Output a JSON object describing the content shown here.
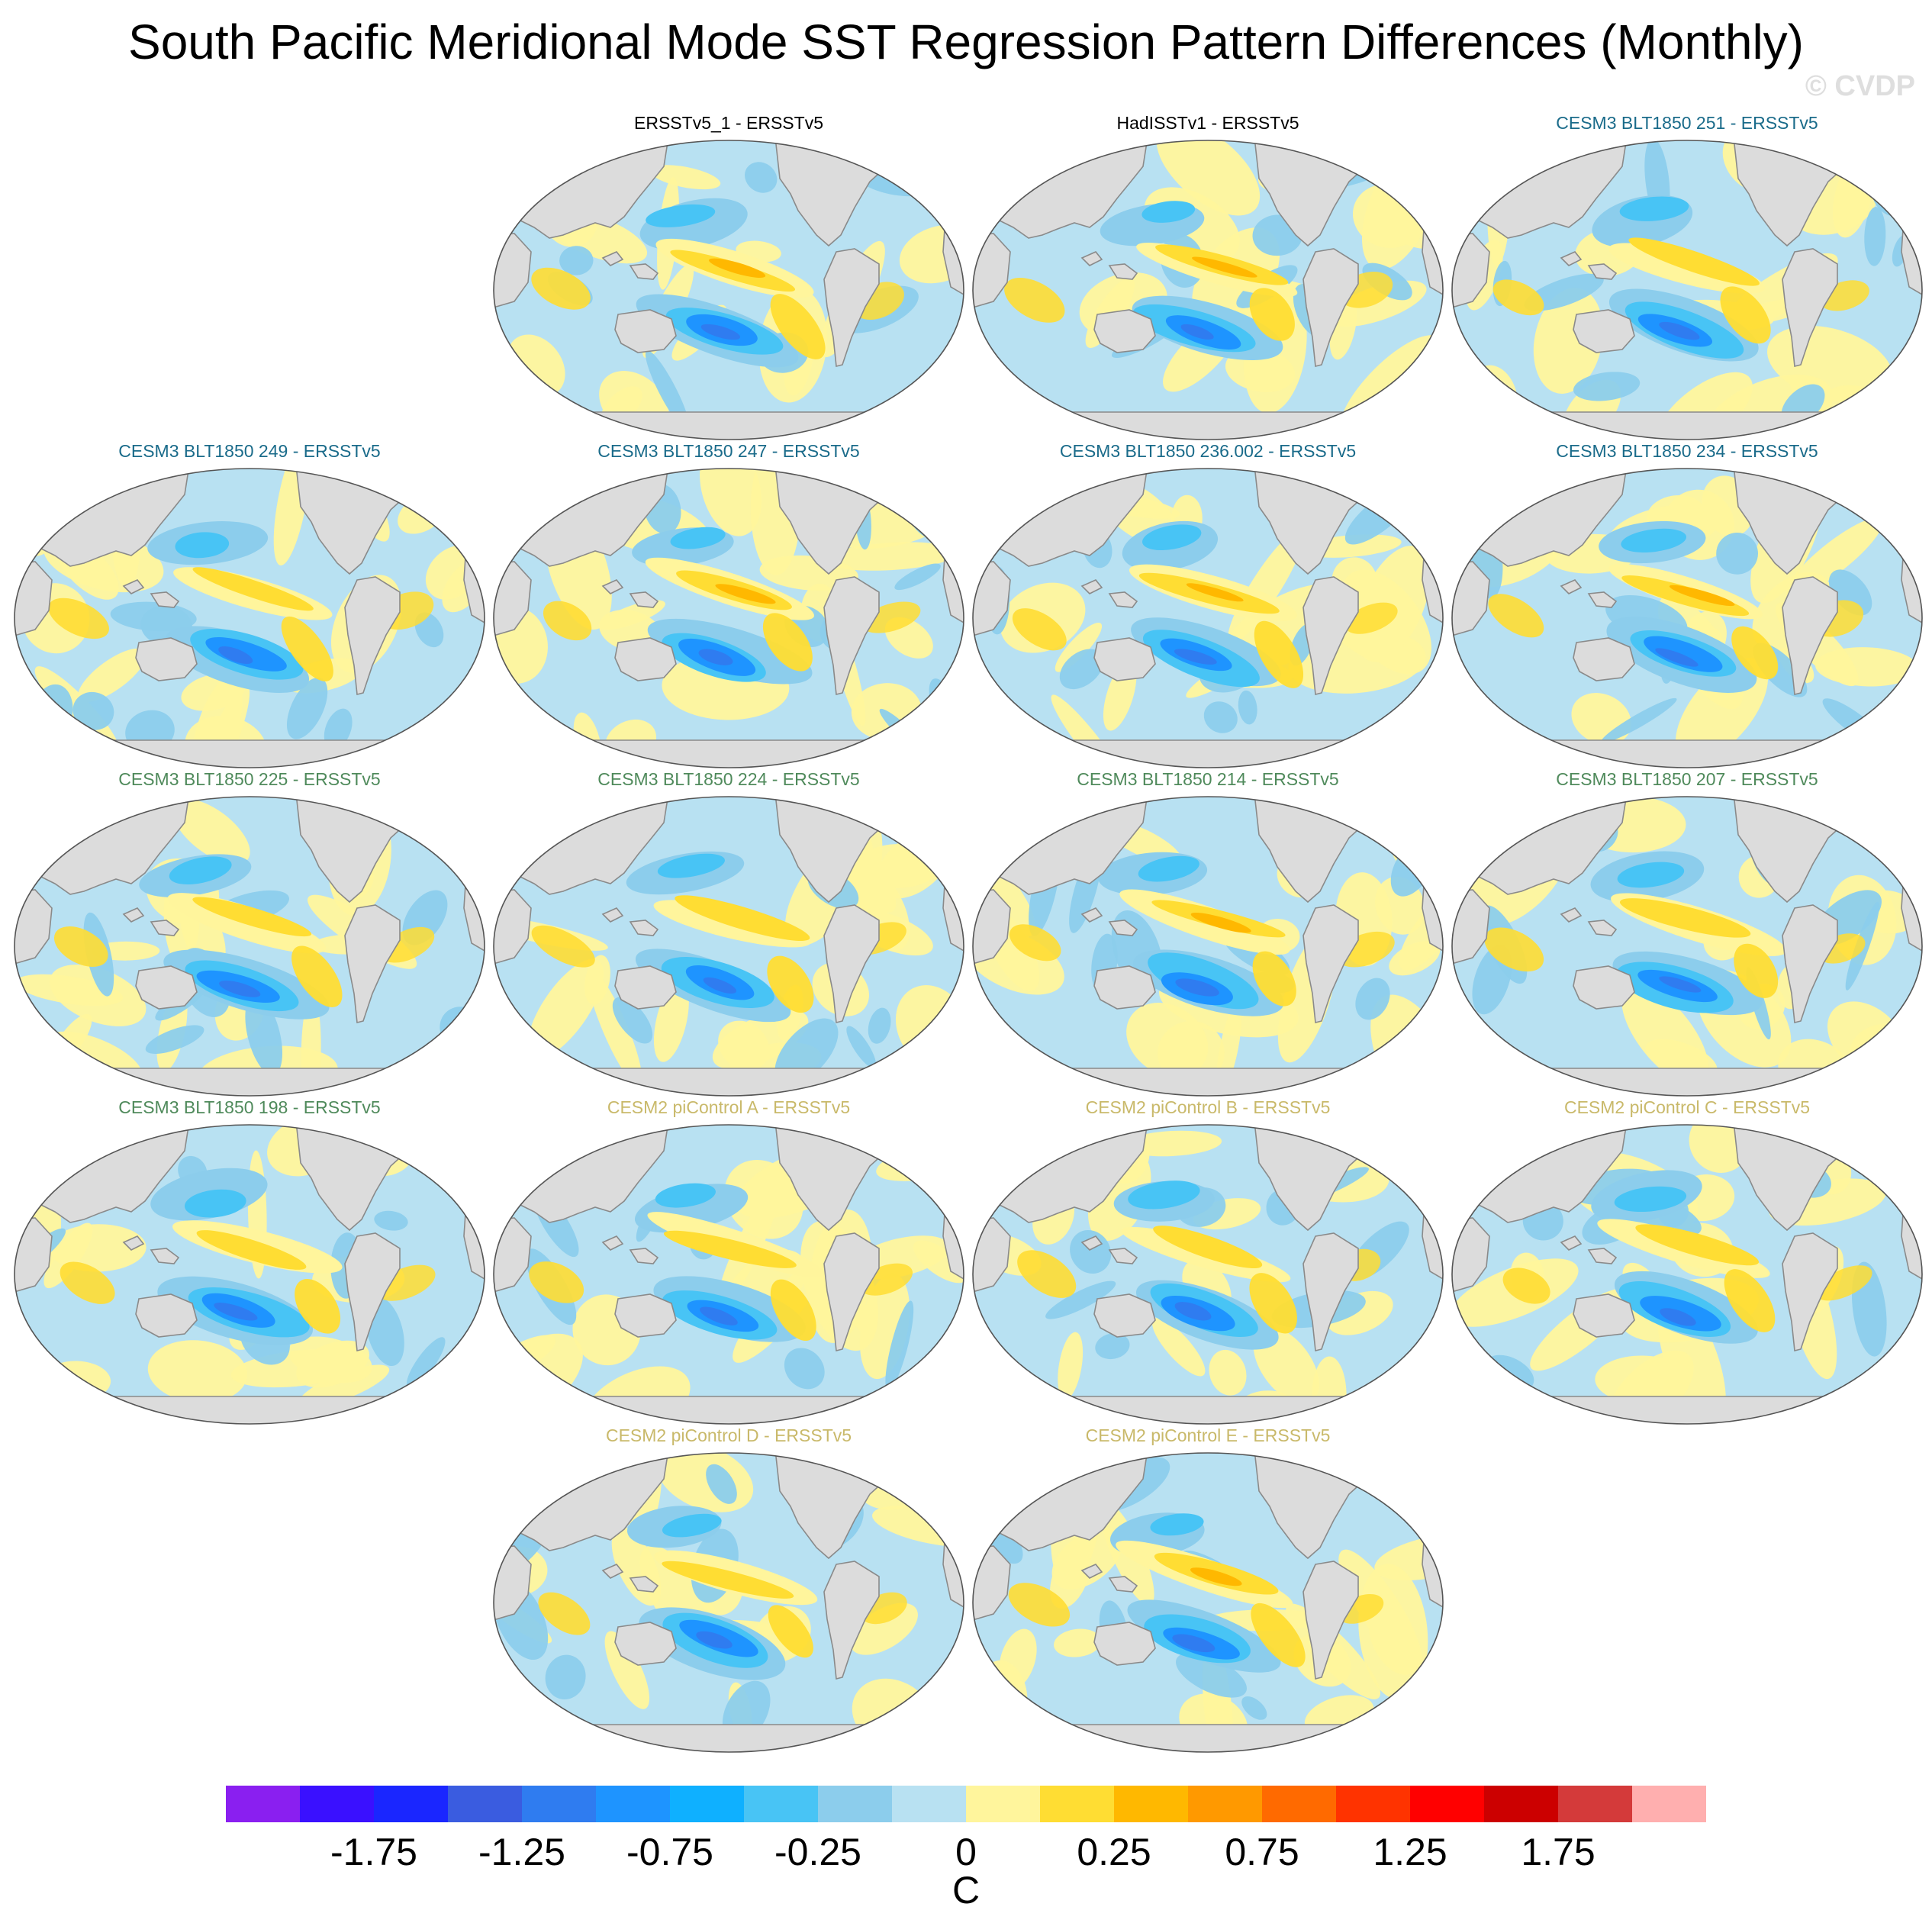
{
  "title": "South Pacific Meridional Mode SST Regression Pattern Differences (Monthly)",
  "watermark": "© CVDP",
  "panels": [
    {
      "label": "ERSSTv5_1 - ERSSTv5",
      "color": "#000000",
      "variant": 0
    },
    {
      "label": "HadISSTv1 - ERSSTv5",
      "color": "#000000",
      "variant": 1
    },
    {
      "label": "CESM3 BLT1850 251 - ERSSTv5",
      "color": "#1a6b8a",
      "variant": 2
    },
    {
      "label": "CESM3 BLT1850 249 - ERSSTv5",
      "color": "#1a6b8a",
      "variant": 3
    },
    {
      "label": "CESM3 BLT1850 247 - ERSSTv5",
      "color": "#1a6b8a",
      "variant": 4
    },
    {
      "label": "CESM3 BLT1850 236.002 - ERSSTv5",
      "color": "#1a6b8a",
      "variant": 5
    },
    {
      "label": "CESM3 BLT1850 234 - ERSSTv5",
      "color": "#1a6b8a",
      "variant": 6
    },
    {
      "label": "CESM3 BLT1850 225 - ERSSTv5",
      "color": "#4f8a5b",
      "variant": 7
    },
    {
      "label": "CESM3 BLT1850 224 - ERSSTv5",
      "color": "#4f8a5b",
      "variant": 8
    },
    {
      "label": "CESM3 BLT1850 214 - ERSSTv5",
      "color": "#4f8a5b",
      "variant": 9
    },
    {
      "label": "CESM3 BLT1850 207 - ERSSTv5",
      "color": "#4f8a5b",
      "variant": 10
    },
    {
      "label": "CESM3 BLT1850 198 - ERSSTv5",
      "color": "#4f8a5b",
      "variant": 11
    },
    {
      "label": "CESM2 piControl A - ERSSTv5",
      "color": "#c9b96a",
      "variant": 12
    },
    {
      "label": "CESM2 piControl B - ERSSTv5",
      "color": "#c9b96a",
      "variant": 13
    },
    {
      "label": "CESM2 piControl C - ERSSTv5",
      "color": "#c9b96a",
      "variant": 14
    },
    {
      "label": "CESM2 piControl D - ERSSTv5",
      "color": "#c9b96a",
      "variant": 15
    },
    {
      "label": "CESM2 piControl E - ERSSTv5",
      "color": "#c9b96a",
      "variant": 16
    }
  ],
  "colorbar": {
    "colors": [
      "#8a1ff0",
      "#3a10ff",
      "#1a26ff",
      "#3a5ce0",
      "#2f7cf0",
      "#1e94ff",
      "#0fb0ff",
      "#48c4f5",
      "#8ccdec",
      "#b8e1f2",
      "#fff59c",
      "#ffdd33",
      "#ffb800",
      "#ff9900",
      "#ff6a00",
      "#ff3300",
      "#ff0000",
      "#cc0000",
      "#d43a3a",
      "#ffafaf"
    ],
    "labels": [
      "-1.75",
      "-1.25",
      "-0.75",
      "-0.25",
      "0",
      "0.25",
      "0.75",
      "1.25",
      "1.75"
    ],
    "unit": "C"
  }
}
